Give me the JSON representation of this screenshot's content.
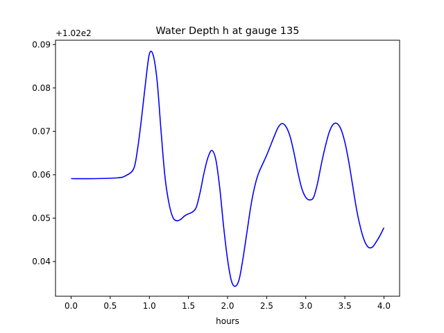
{
  "chart_data": {
    "type": "line",
    "title": "Water Depth h at gauge 135",
    "xlabel": "hours",
    "ylabel": "",
    "offset_text": "+1.02e2",
    "xlim": [
      -0.2,
      4.2
    ],
    "ylim": [
      0.032,
      0.091
    ],
    "x_ticks": [
      0.0,
      0.5,
      1.0,
      1.5,
      2.0,
      2.5,
      3.0,
      3.5,
      4.0
    ],
    "x_tick_labels": [
      "0.0",
      "0.5",
      "1.0",
      "1.5",
      "2.0",
      "2.5",
      "3.0",
      "3.5",
      "4.0"
    ],
    "y_ticks": [
      0.04,
      0.05,
      0.06,
      0.07,
      0.08,
      0.09
    ],
    "y_tick_labels": [
      "0.04",
      "0.05",
      "0.06",
      "0.07",
      "0.08",
      "0.09"
    ],
    "grid": false,
    "series": [
      {
        "color": "#0000ff",
        "x": [
          0.0,
          0.3,
          0.6,
          0.7,
          0.8,
          0.85,
          0.9,
          0.95,
          1.0,
          1.05,
          1.1,
          1.15,
          1.2,
          1.25,
          1.3,
          1.35,
          1.4,
          1.45,
          1.5,
          1.55,
          1.6,
          1.65,
          1.7,
          1.75,
          1.8,
          1.85,
          1.9,
          1.95,
          2.0,
          2.05,
          2.1,
          2.15,
          2.2,
          2.25,
          2.3,
          2.35,
          2.4,
          2.5,
          2.6,
          2.65,
          2.7,
          2.75,
          2.8,
          2.85,
          2.9,
          2.95,
          3.0,
          3.05,
          3.1,
          3.15,
          3.2,
          3.25,
          3.3,
          3.35,
          3.4,
          3.45,
          3.5,
          3.55,
          3.6,
          3.65,
          3.7,
          3.75,
          3.8,
          3.85,
          3.9,
          3.95,
          4.0
        ],
        "y": [
          0.0591,
          0.0591,
          0.0593,
          0.0598,
          0.0614,
          0.066,
          0.073,
          0.081,
          0.0878,
          0.0875,
          0.0815,
          0.07,
          0.0595,
          0.0535,
          0.0502,
          0.0494,
          0.0497,
          0.0505,
          0.051,
          0.0514,
          0.0525,
          0.056,
          0.0605,
          0.064,
          0.0656,
          0.0635,
          0.057,
          0.048,
          0.0405,
          0.0355,
          0.0343,
          0.036,
          0.041,
          0.047,
          0.053,
          0.0575,
          0.0605,
          0.0645,
          0.069,
          0.071,
          0.0718,
          0.071,
          0.0688,
          0.065,
          0.0605,
          0.0568,
          0.0548,
          0.0542,
          0.0548,
          0.058,
          0.0625,
          0.0665,
          0.0698,
          0.0716,
          0.0718,
          0.0705,
          0.0675,
          0.063,
          0.0575,
          0.052,
          0.0478,
          0.0448,
          0.0433,
          0.0433,
          0.0445,
          0.046,
          0.0478
        ]
      }
    ]
  }
}
